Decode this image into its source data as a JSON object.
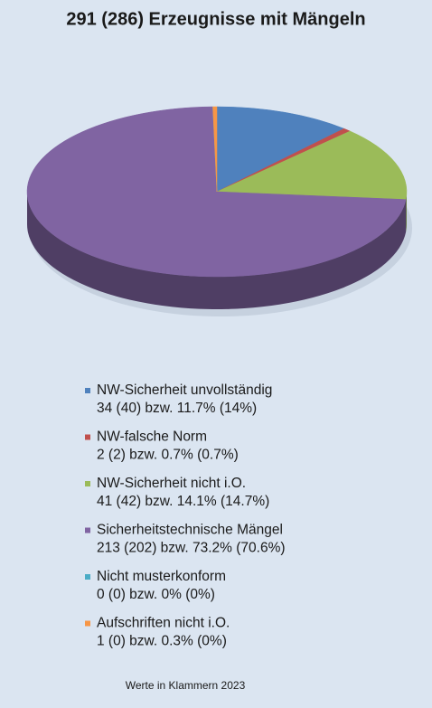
{
  "chart_data": {
    "type": "pie",
    "title": "291 (286) Erzeugnisse mit Mängeln",
    "categories": [
      "NW-Sicherheit unvollständig",
      "NW-falsche Norm",
      "NW-Sicherheit nicht i.O.",
      "Sicherheitstechnische Mängel",
      "Nicht musterkonform",
      "Aufschriften nicht i.O."
    ],
    "values": [
      34,
      2,
      41,
      213,
      0,
      1
    ],
    "value_labels": [
      "34 (40) bzw. 11.7% (14%)",
      "2 (2) bzw. 0.7% (0.7%)",
      "41 (42) bzw. 14.1% (14.7%)",
      "213 (202) bzw. 73.2% (70.6%)",
      "0 (0) bzw. 0% (0%)",
      "1 (0) bzw. 0.3% (0%)"
    ],
    "colors": [
      "#4f81bd",
      "#c0504d",
      "#9bbb59",
      "#8064a2",
      "#4bacc6",
      "#f79646"
    ],
    "note": "Werte in Klammern 2023"
  }
}
